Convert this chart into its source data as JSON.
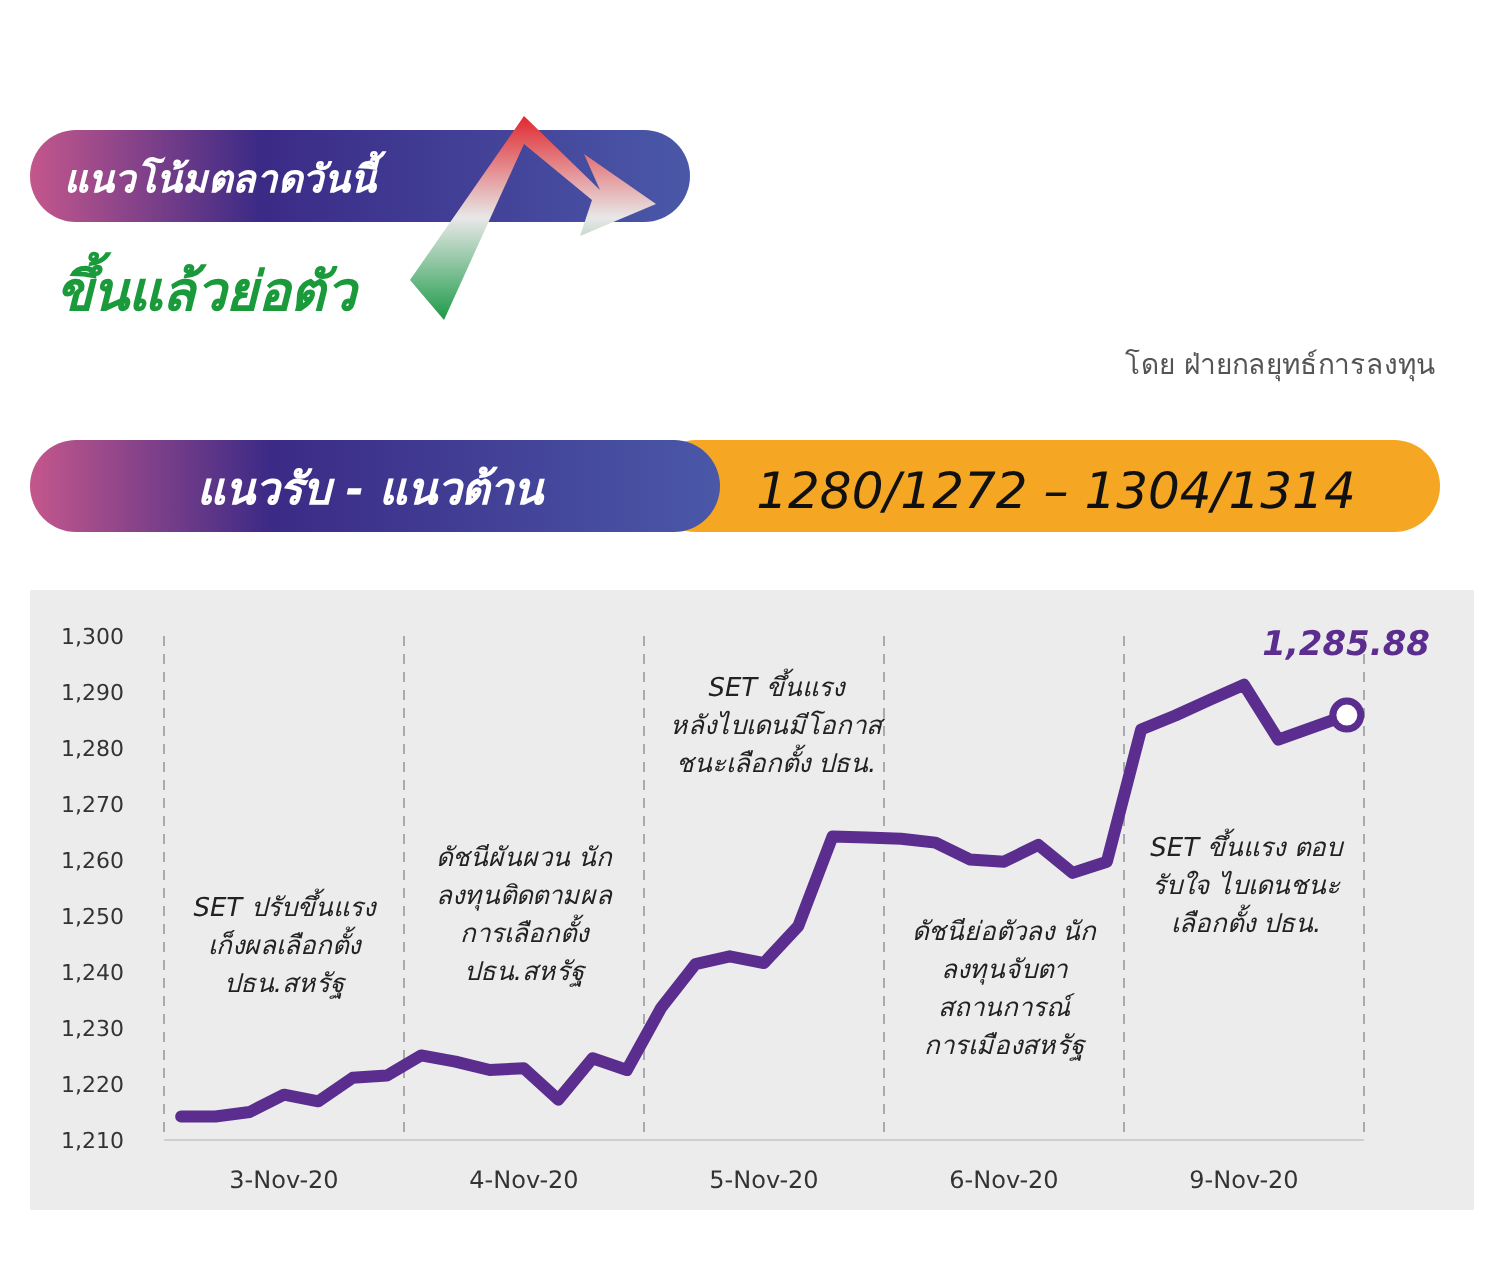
{
  "chart_data": {
    "type": "line",
    "title": "แนวโน้มตลาดวันนี้",
    "subtitle": "ขึ้นแล้วย่อตัว",
    "annotations": [
      "โดย ฝ่ายกลยุทธ์การลงทุน",
      "แนวรับ - แนวต้าน",
      "1280/1272 – 1304/1314",
      "SET ปรับขึ้นแรง\nเก็งผลเลือกตั้ง\nปธน.สหรัฐ",
      "ดัชนีผันผวน นัก\nลงทุนติดตามผล\nการเลือกตั้ง\nปธน.สหรัฐ",
      "SET ขึ้นแรง\nหลังไบเดนมีโอกาส\nชนะเลือกตั้ง ปธน.",
      "ดัชนีย่อตัวลง นัก\nลงทุนจับตา\nสถานการณ์\nการเมืองสหรัฐ",
      "SET ขึ้นแรง ตอบ\nรับใจ ไบเดนชนะ\nเลือกตั้ง ปธน.",
      {
        "text": "1,285.88",
        "y": 1285.88
      }
    ],
    "categories": [
      null,
      null,
      null,
      "3-Nov-20",
      null,
      null,
      null,
      null,
      null,
      null,
      "4-Nov-20",
      null,
      null,
      null,
      null,
      null,
      null,
      "5-Nov-20",
      null,
      null,
      null,
      null,
      null,
      null,
      "6-Nov-20",
      null,
      null,
      null,
      null,
      null,
      null,
      "9-Nov-20",
      null,
      null,
      null
    ],
    "ylim": [
      1210,
      1300
    ],
    "yticks": [
      {
        "value": 1210,
        "label": "1,210"
      },
      {
        "value": 1220,
        "label": "1,220"
      },
      {
        "value": 1230,
        "label": "1,230"
      },
      {
        "value": 1240,
        "label": "1,240"
      },
      {
        "value": 1250,
        "label": "1,250"
      },
      {
        "value": 1260,
        "label": "1,260"
      },
      {
        "value": 1270,
        "label": "1,270"
      },
      {
        "value": 1280,
        "label": "1,280"
      },
      {
        "value": 1290,
        "label": "1,290"
      },
      {
        "value": 1300,
        "label": "1,300"
      }
    ],
    "line_style": "solid",
    "series": [
      {
        "color": "#5b2d8e",
        "values": [
          1214.2,
          1214.2,
          1215.0,
          1218.1,
          1216.9,
          1221.1,
          1221.5,
          1225.1,
          1224.0,
          1222.5,
          1222.8,
          1217.2,
          1224.6,
          1222.5,
          1233.6,
          1241.4,
          1242.8,
          1241.6,
          1248.2,
          1264.2,
          1264.0,
          1263.8,
          1263.1,
          1260.1,
          1259.7,
          1262.7,
          1257.7,
          1259.7,
          1283.3,
          1285.8,
          1288.6,
          1291.3,
          1281.5,
          1283.7,
          1285.88
        ]
      },
      {
        "type": "scatter",
        "color": "#ffffff",
        "values": [
          null,
          null,
          null,
          null,
          null,
          null,
          null,
          null,
          null,
          null,
          null,
          null,
          null,
          null,
          null,
          null,
          null,
          null,
          null,
          null,
          null,
          null,
          null,
          null,
          null,
          null,
          null,
          null,
          null,
          null,
          null,
          null,
          null,
          null,
          1285.88
        ]
      }
    ]
  }
}
